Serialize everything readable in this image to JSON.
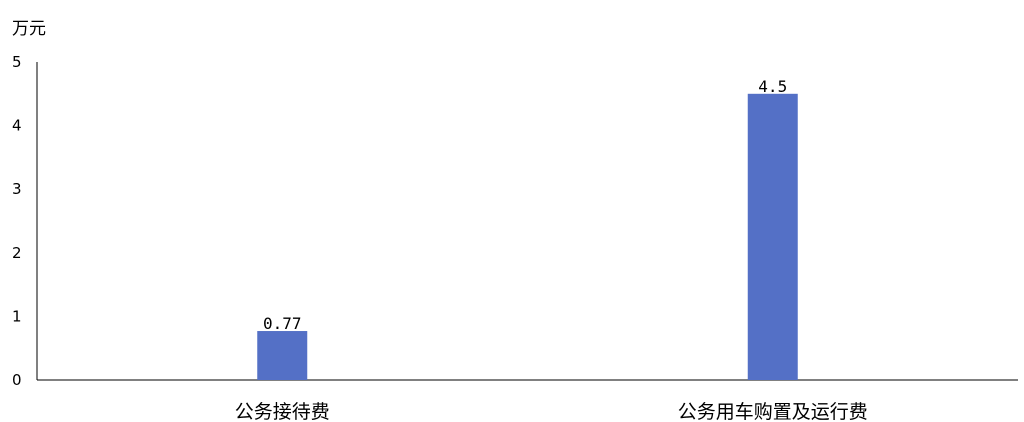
{
  "chart_data": {
    "type": "bar",
    "title": "",
    "unit_label": "万元",
    "xlabel": "",
    "ylabel": "",
    "categories": [
      "公务接待费",
      "公务用车购置及运行费"
    ],
    "values": [
      0.77,
      4.5
    ],
    "data_labels": [
      "0.77",
      "4.5"
    ],
    "ylim": [
      0,
      5
    ],
    "yticks": [
      "0",
      "1",
      "2",
      "3",
      "4",
      "5"
    ],
    "grid": false,
    "legend": "none",
    "bar_color": "#5470C6",
    "axis_color": "#000000"
  }
}
